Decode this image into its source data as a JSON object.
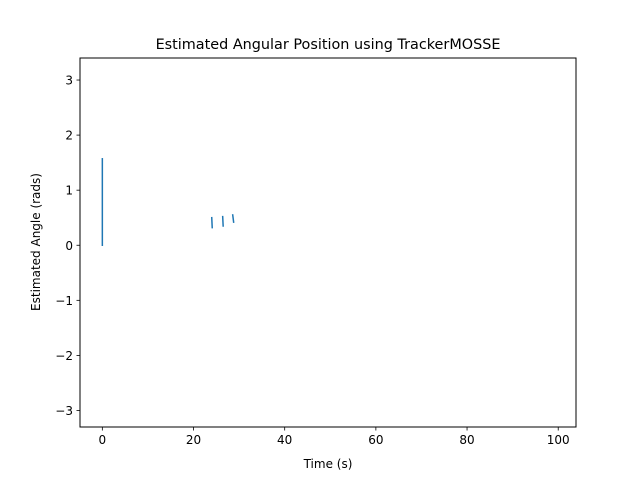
{
  "chart_data": {
    "type": "line",
    "title": "Estimated Angular Position using TrackerMOSSE",
    "xlabel": "Time (s)",
    "ylabel": "Estimated Angle (rads)",
    "xlim": [
      -4.9,
      103.9
    ],
    "ylim": [
      -3.3,
      3.4
    ],
    "xticks": [
      0,
      20,
      40,
      60,
      80,
      100
    ],
    "xtick_labels": [
      "0",
      "20",
      "40",
      "60",
      "80",
      "100"
    ],
    "yticks": [
      -3,
      -2,
      -1,
      0,
      1,
      2,
      3
    ],
    "ytick_labels": [
      "−3",
      "−2",
      "−1",
      "0",
      "1",
      "2",
      "3"
    ],
    "grid": false,
    "series_color": "#1f77b4",
    "segments": [
      [
        [
          0.0,
          0.0
        ],
        [
          0.0,
          1.57
        ]
      ],
      [
        [
          24.0,
          0.5
        ],
        [
          24.1,
          0.32
        ]
      ],
      [
        [
          26.4,
          0.52
        ],
        [
          26.5,
          0.35
        ]
      ],
      [
        [
          28.6,
          0.55
        ],
        [
          28.8,
          0.42
        ]
      ]
    ]
  }
}
